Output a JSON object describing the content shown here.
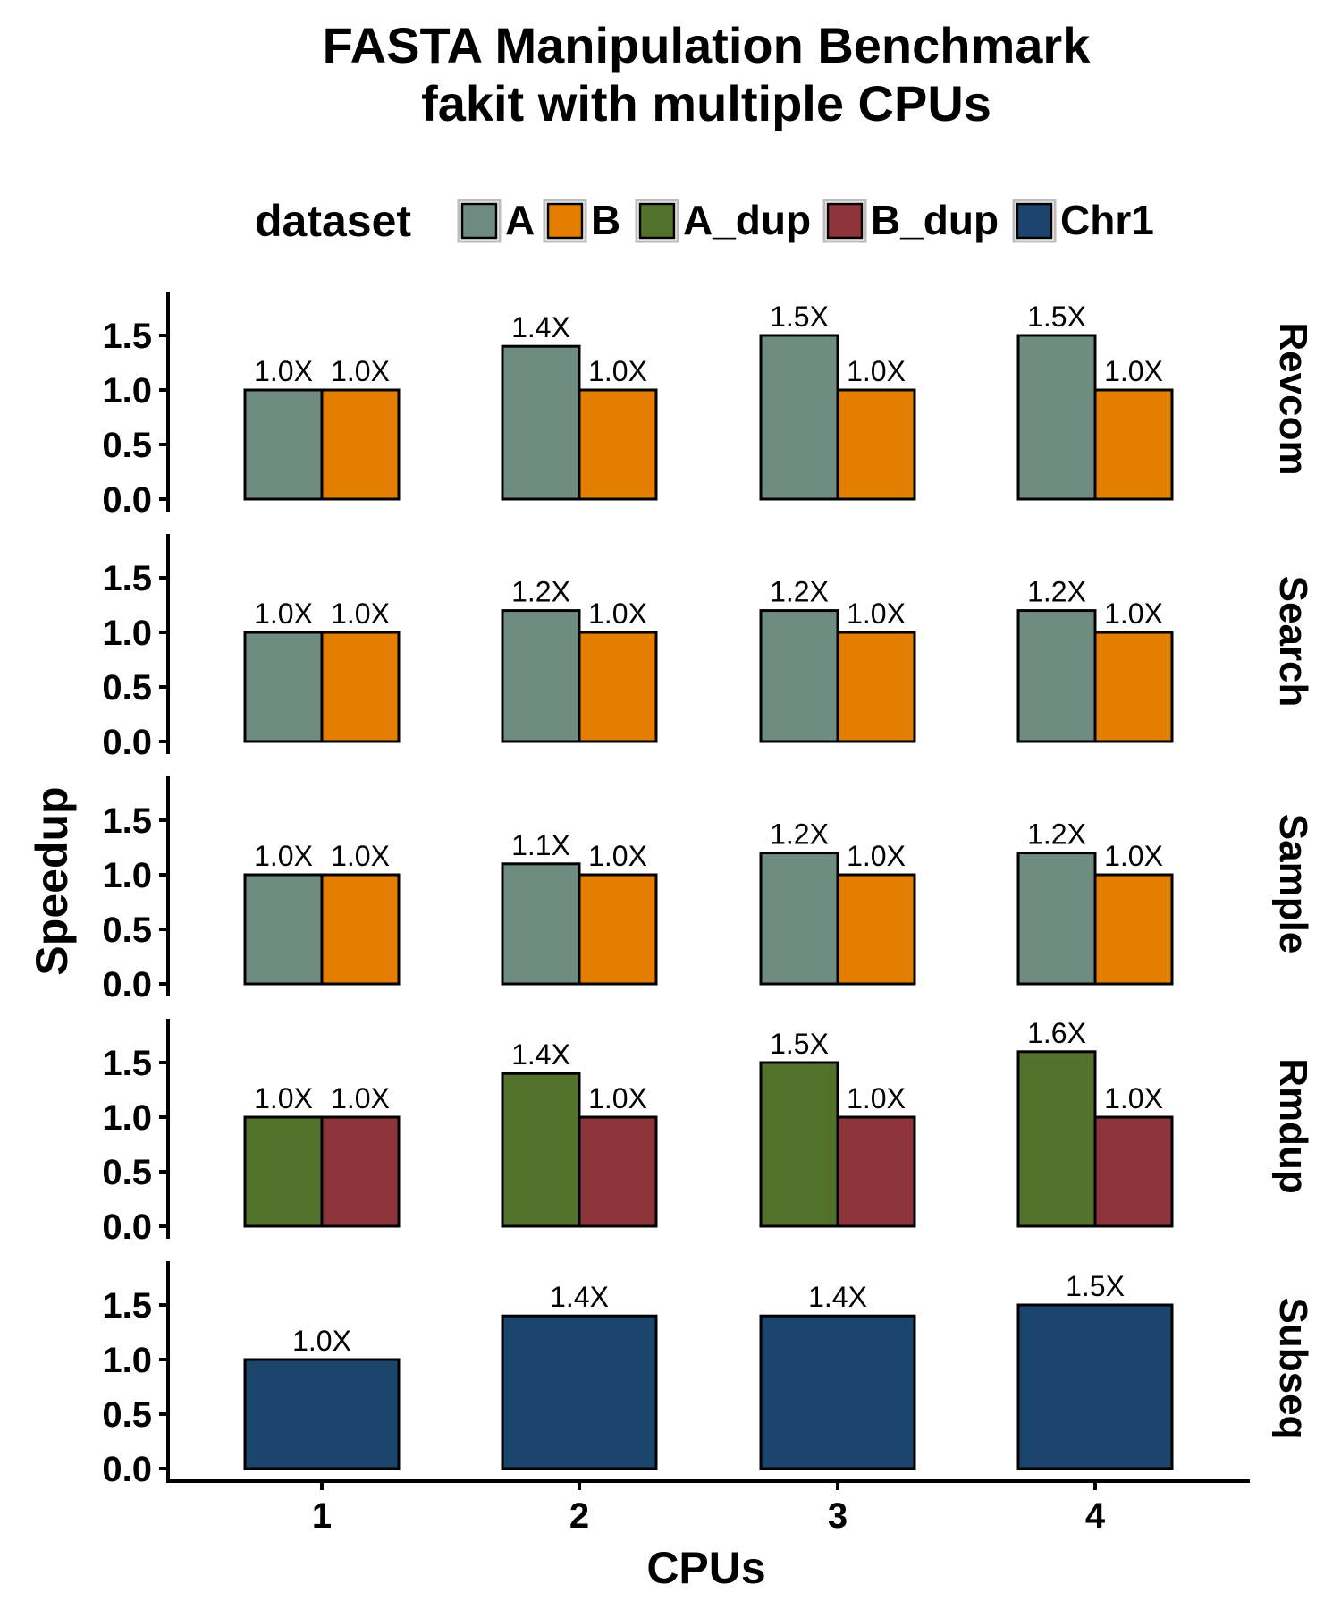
{
  "chart_data": {
    "type": "bar",
    "title": "FASTA Manipulation Benchmark",
    "subtitle": "fakit with multiple CPUs",
    "xlabel": "CPUs",
    "ylabel": "Speedup",
    "categories": [
      "1",
      "2",
      "3",
      "4"
    ],
    "ylim": [
      0,
      1.9
    ],
    "yticks": [
      "0.0",
      "0.5",
      "1.0",
      "1.5"
    ],
    "grid": false,
    "legend": {
      "title": "dataset",
      "placement": "top",
      "items": [
        {
          "label": "A",
          "color": "#6e8d80"
        },
        {
          "label": "B",
          "color": "#e37e00"
        },
        {
          "label": "A_dup",
          "color": "#53732d"
        },
        {
          "label": "B_dup",
          "color": "#8e343b"
        },
        {
          "label": "Chr1",
          "color": "#1b456c"
        }
      ]
    },
    "panels": [
      {
        "name": "Revcom",
        "series": [
          {
            "name": "A",
            "color": "#6e8d80",
            "values": [
              1.0,
              1.4,
              1.5,
              1.5
            ],
            "labels": [
              "1.0X",
              "1.4X",
              "1.5X",
              "1.5X"
            ]
          },
          {
            "name": "B",
            "color": "#e37e00",
            "values": [
              1.0,
              1.0,
              1.0,
              1.0
            ],
            "labels": [
              "1.0X",
              "1.0X",
              "1.0X",
              "1.0X"
            ]
          }
        ]
      },
      {
        "name": "Search",
        "series": [
          {
            "name": "A",
            "color": "#6e8d80",
            "values": [
              1.0,
              1.2,
              1.2,
              1.2
            ],
            "labels": [
              "1.0X",
              "1.2X",
              "1.2X",
              "1.2X"
            ]
          },
          {
            "name": "B",
            "color": "#e37e00",
            "values": [
              1.0,
              1.0,
              1.0,
              1.0
            ],
            "labels": [
              "1.0X",
              "1.0X",
              "1.0X",
              "1.0X"
            ]
          }
        ]
      },
      {
        "name": "Sample",
        "series": [
          {
            "name": "A",
            "color": "#6e8d80",
            "values": [
              1.0,
              1.1,
              1.2,
              1.2
            ],
            "labels": [
              "1.0X",
              "1.1X",
              "1.2X",
              "1.2X"
            ]
          },
          {
            "name": "B",
            "color": "#e37e00",
            "values": [
              1.0,
              1.0,
              1.0,
              1.0
            ],
            "labels": [
              "1.0X",
              "1.0X",
              "1.0X",
              "1.0X"
            ]
          }
        ]
      },
      {
        "name": "Rmdup",
        "series": [
          {
            "name": "A_dup",
            "color": "#53732d",
            "values": [
              1.0,
              1.4,
              1.5,
              1.6
            ],
            "labels": [
              "1.0X",
              "1.4X",
              "1.5X",
              "1.6X"
            ]
          },
          {
            "name": "B_dup",
            "color": "#8e343b",
            "values": [
              1.0,
              1.0,
              1.0,
              1.0
            ],
            "labels": [
              "1.0X",
              "1.0X",
              "1.0X",
              "1.0X"
            ]
          }
        ]
      },
      {
        "name": "Subseq",
        "series": [
          {
            "name": "Chr1",
            "color": "#1b456c",
            "values": [
              1.0,
              1.4,
              1.4,
              1.5
            ],
            "labels": [
              "1.0X",
              "1.4X",
              "1.4X",
              "1.5X"
            ]
          }
        ]
      }
    ]
  }
}
